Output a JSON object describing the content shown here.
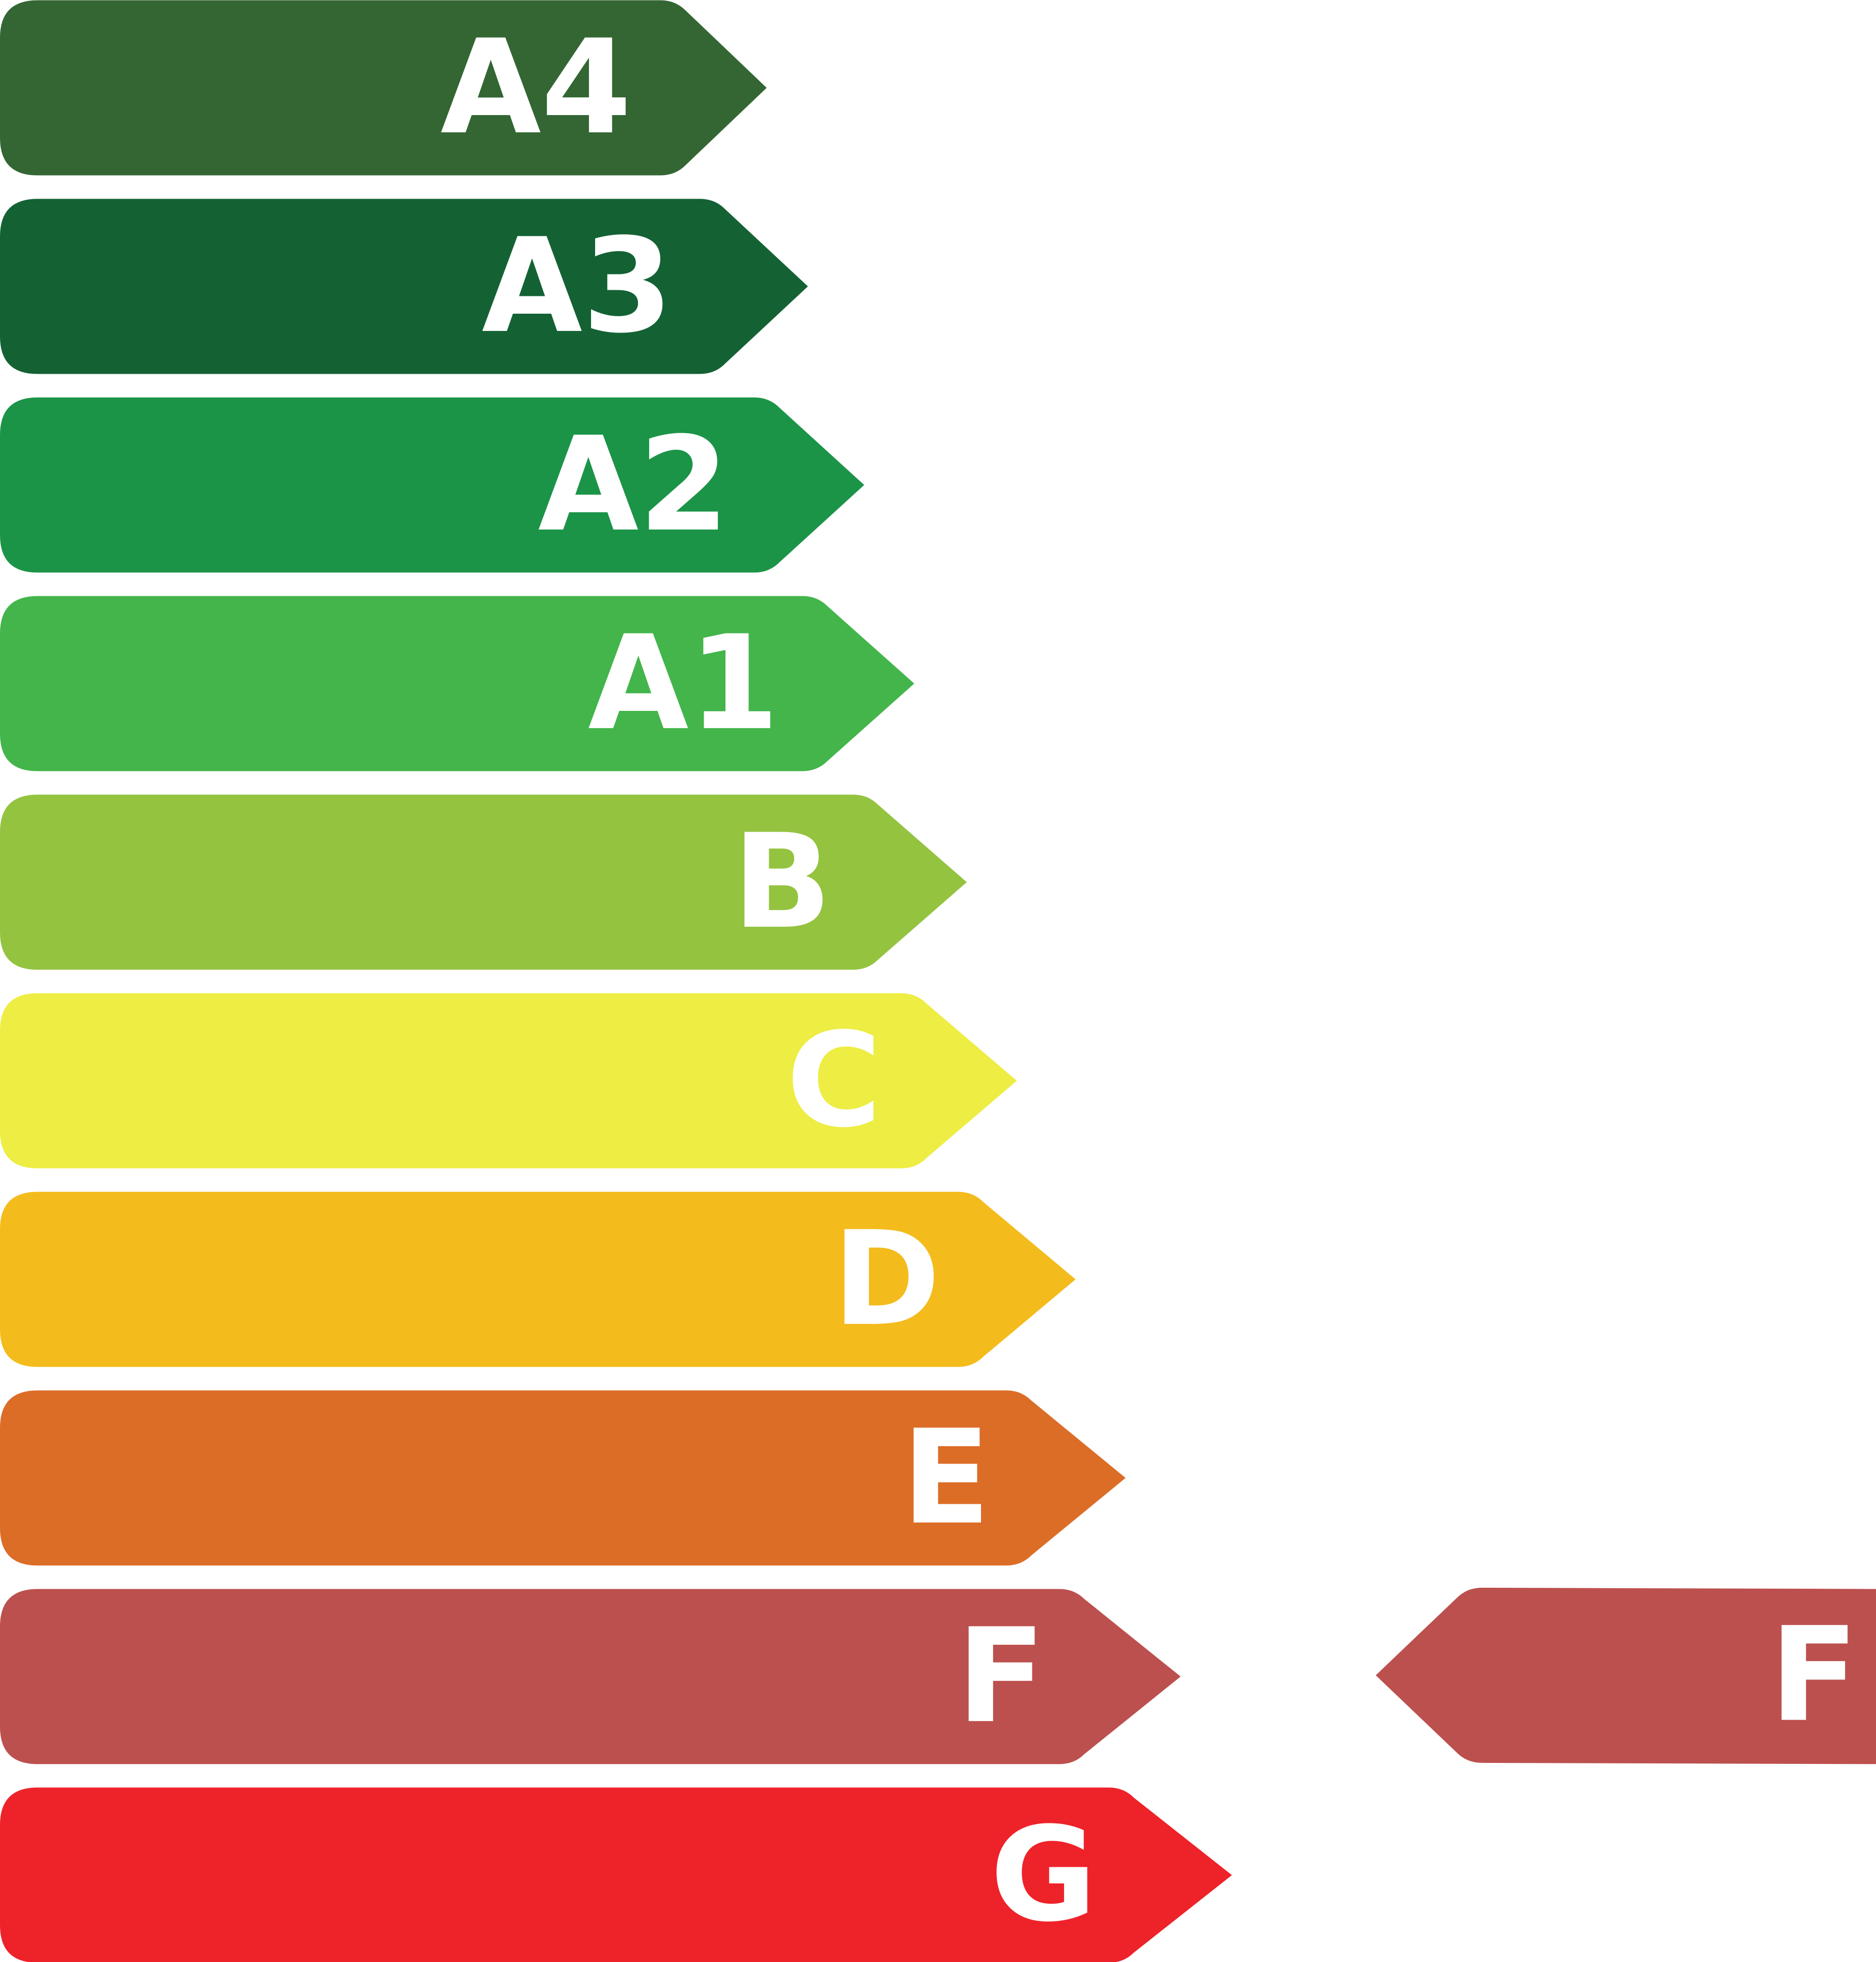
{
  "classes": [
    "A4",
    "A3",
    "A2",
    "A1",
    "B",
    "C",
    "D",
    "E",
    "F",
    "G"
  ],
  "rating": "F"
}
